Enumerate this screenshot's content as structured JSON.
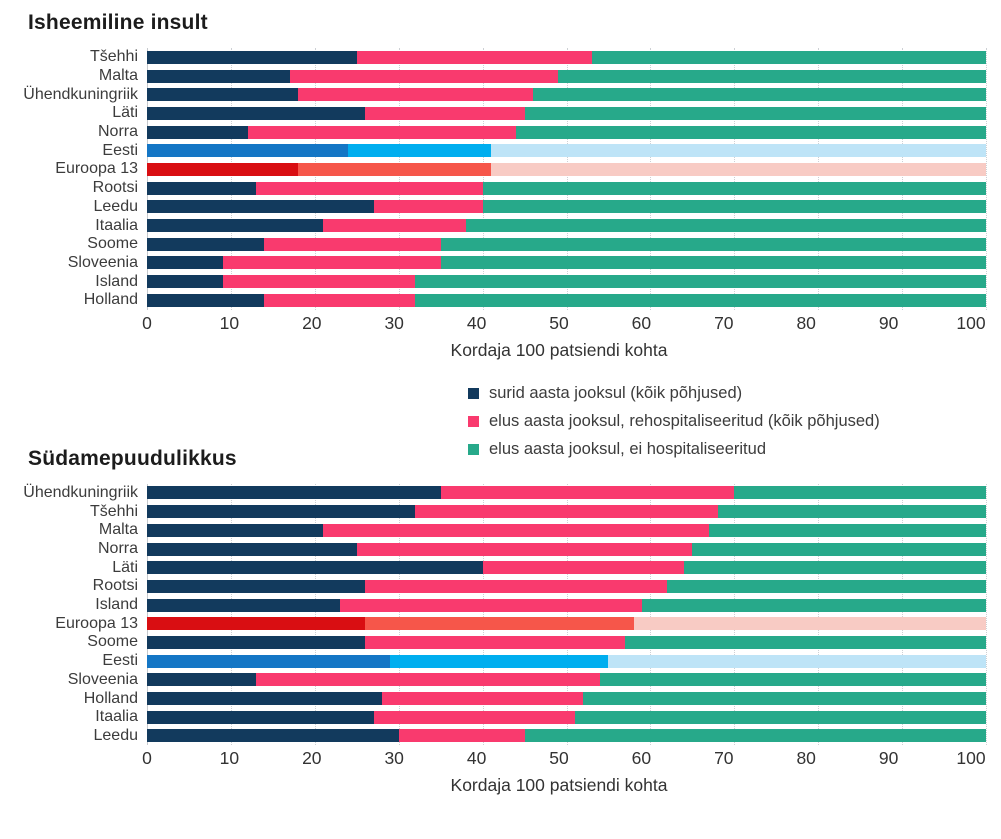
{
  "palettes": {
    "default": [
      "#123A5D",
      "#F93A6E",
      "#27A98A"
    ],
    "estonia": [
      "#1476C5",
      "#00AEEF",
      "#BEE4F7"
    ],
    "europe": [
      "#D90E12",
      "#F6564A",
      "#F8CBC4"
    ]
  },
  "legend": {
    "items": [
      {
        "label": "surid aasta jooksul (kõik põhjused)",
        "color": "#123A5D"
      },
      {
        "label": "elus aasta jooksul, rehospitaliseeritud (kõik põhjused)",
        "color": "#F93A6E"
      },
      {
        "label": "elus aasta jooksul, ei hospitaliseeritud",
        "color": "#27A98A"
      }
    ]
  },
  "chart_data": [
    {
      "type": "bar",
      "orientation": "horizontal",
      "stacked": true,
      "title": "Isheemiline insult",
      "xlabel": "Kordaja 100 patsiendi kohta",
      "xlim": [
        0,
        100
      ],
      "x_ticks": [
        0,
        10,
        20,
        30,
        40,
        50,
        60,
        70,
        80,
        90,
        100
      ],
      "grid": "dotted-vertical",
      "series_names": [
        "surid aasta jooksul (kõik põhjused)",
        "elus aasta jooksul, rehospitaliseeritud (kõik põhjused)",
        "elus aasta jooksul, ei hospitaliseeritud"
      ],
      "rows": [
        {
          "label": "Tšehhi",
          "palette": "default",
          "values": [
            25,
            28,
            47
          ]
        },
        {
          "label": "Malta",
          "palette": "default",
          "values": [
            17,
            32,
            51
          ]
        },
        {
          "label": "Ühendkuningriik",
          "palette": "default",
          "values": [
            18,
            28,
            54
          ]
        },
        {
          "label": "Läti",
          "palette": "default",
          "values": [
            26,
            19,
            55
          ]
        },
        {
          "label": "Norra",
          "palette": "default",
          "values": [
            12,
            32,
            56
          ]
        },
        {
          "label": "Eesti",
          "palette": "estonia",
          "values": [
            24,
            17,
            59
          ]
        },
        {
          "label": "Euroopa 13",
          "palette": "europe",
          "values": [
            18,
            23,
            59
          ]
        },
        {
          "label": "Rootsi",
          "palette": "default",
          "values": [
            13,
            27,
            60
          ]
        },
        {
          "label": "Leedu",
          "palette": "default",
          "values": [
            27,
            13,
            60
          ]
        },
        {
          "label": "Itaalia",
          "palette": "default",
          "values": [
            21,
            17,
            62
          ]
        },
        {
          "label": "Soome",
          "palette": "default",
          "values": [
            14,
            21,
            65
          ]
        },
        {
          "label": "Sloveenia",
          "palette": "default",
          "values": [
            9,
            26,
            65
          ]
        },
        {
          "label": "Island",
          "palette": "default",
          "values": [
            9,
            23,
            68
          ]
        },
        {
          "label": "Holland",
          "palette": "default",
          "values": [
            14,
            18,
            68
          ]
        }
      ]
    },
    {
      "type": "bar",
      "orientation": "horizontal",
      "stacked": true,
      "title": "Südamepuudulikkus",
      "xlabel": "Kordaja 100 patsiendi kohta",
      "xlim": [
        0,
        100
      ],
      "x_ticks": [
        0,
        10,
        20,
        30,
        40,
        50,
        60,
        70,
        80,
        90,
        100
      ],
      "grid": "dotted-vertical",
      "series_names": [
        "surid aasta jooksul (kõik põhjused)",
        "elus aasta jooksul, rehospitaliseeritud (kõik põhjused)",
        "elus aasta jooksul, ei hospitaliseeritud"
      ],
      "rows": [
        {
          "label": "Ühendkuningriik",
          "palette": "default",
          "values": [
            35,
            35,
            30
          ]
        },
        {
          "label": "Tšehhi",
          "palette": "default",
          "values": [
            32,
            36,
            32
          ]
        },
        {
          "label": "Malta",
          "palette": "default",
          "values": [
            21,
            46,
            33
          ]
        },
        {
          "label": "Norra",
          "palette": "default",
          "values": [
            25,
            40,
            35
          ]
        },
        {
          "label": "Läti",
          "palette": "default",
          "values": [
            40,
            24,
            36
          ]
        },
        {
          "label": "Rootsi",
          "palette": "default",
          "values": [
            26,
            36,
            38
          ]
        },
        {
          "label": "Island",
          "palette": "default",
          "values": [
            23,
            36,
            41
          ]
        },
        {
          "label": "Euroopa 13",
          "palette": "europe",
          "values": [
            26,
            32,
            42
          ]
        },
        {
          "label": "Soome",
          "palette": "default",
          "values": [
            26,
            31,
            43
          ]
        },
        {
          "label": "Eesti",
          "palette": "estonia",
          "values": [
            29,
            26,
            45
          ]
        },
        {
          "label": "Sloveenia",
          "palette": "default",
          "values": [
            13,
            41,
            46
          ]
        },
        {
          "label": "Holland",
          "palette": "default",
          "values": [
            28,
            24,
            48
          ]
        },
        {
          "label": "Itaalia",
          "palette": "default",
          "values": [
            27,
            24,
            49
          ]
        },
        {
          "label": "Leedu",
          "palette": "default",
          "values": [
            30,
            15,
            55
          ]
        }
      ]
    }
  ],
  "segment_names": [
    "bar-segment-died",
    "bar-segment-rehospitalized",
    "bar-segment-not-hospitalized"
  ]
}
